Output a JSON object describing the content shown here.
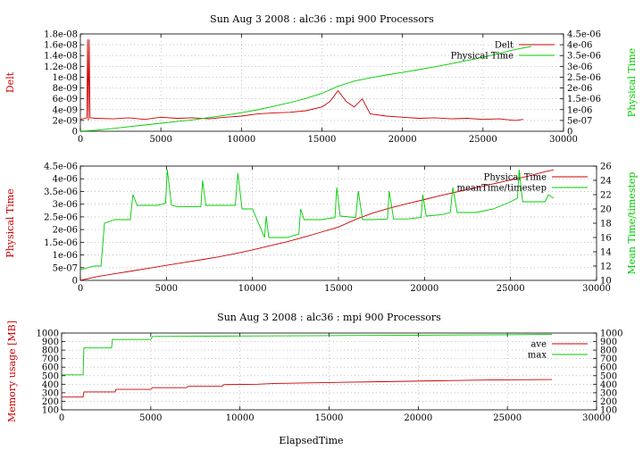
{
  "chart_data": [
    {
      "type": "line",
      "title": "Sun Aug 3 2008 : alc36 : mpi 900 Processors",
      "xlabel": "",
      "ylabel": "Delt",
      "y2label": "Physical Time",
      "xlim": [
        0,
        30000
      ],
      "ylim": [
        0,
        1.8e-08
      ],
      "y2lim": [
        0,
        4.5e-06
      ],
      "grid": true,
      "legend": "top-right",
      "x_ticks": [
        "0",
        "5000",
        "10000",
        "15000",
        "20000",
        "25000",
        "30000"
      ],
      "y_ticks": [
        "0",
        "2e-09",
        "4e-09",
        "6e-09",
        "8e-09",
        "1e-08",
        "1.2e-08",
        "1.4e-08",
        "1.6e-08",
        "1.8e-08"
      ],
      "y2_ticks": [
        "0",
        "5e-07",
        "1e-06",
        "1.5e-06",
        "2e-06",
        "2.5e-06",
        "3e-06",
        "3.5e-06",
        "4e-06",
        "4.5e-06"
      ],
      "series": [
        {
          "name": "Delt",
          "axis": "y",
          "color": "#cc0000",
          "x": [
            0,
            400,
            450,
            500,
            550,
            600,
            1000,
            2000,
            3000,
            4000,
            5000,
            6000,
            7000,
            8000,
            9000,
            10000,
            11000,
            12000,
            13000,
            14000,
            15000,
            15500,
            16000,
            16500,
            17000,
            17500,
            18000,
            19000,
            20000,
            21000,
            22000,
            23000,
            24000,
            25000,
            26000,
            27000,
            27500
          ],
          "y": [
            2.2e-09,
            2.5e-09,
            1.7e-08,
            2e-09,
            1.7e-08,
            2.5e-09,
            2.4e-09,
            2.3e-09,
            2.5e-09,
            2.2e-09,
            2.6e-09,
            2.4e-09,
            2.5e-09,
            2.3e-09,
            2.6e-09,
            2.8e-09,
            3.2e-09,
            3.4e-09,
            3.5e-09,
            3.8e-09,
            4.5e-09,
            5.5e-09,
            7.5e-09,
            5.5e-09,
            4.5e-09,
            6e-09,
            3.2e-09,
            2.8e-09,
            2.6e-09,
            2.4e-09,
            2.5e-09,
            2.3e-09,
            2.4e-09,
            2.2e-09,
            2.3e-09,
            2e-09,
            2.2e-09
          ]
        },
        {
          "name": "Physical Time",
          "axis": "y2",
          "color": "#00cc00",
          "x": [
            0,
            1000,
            2000,
            3000,
            4000,
            5000,
            6000,
            7000,
            8000,
            9000,
            10000,
            11000,
            12000,
            13000,
            14000,
            15000,
            16000,
            17000,
            18000,
            19000,
            20000,
            21000,
            22000,
            23000,
            24000,
            25000,
            26000,
            27000,
            28000
          ],
          "y": [
            0,
            5e-08,
            1.3e-07,
            2.1e-07,
            2.9e-07,
            3.7e-07,
            4.5e-07,
            5.3e-07,
            6.3e-07,
            7.4e-07,
            8.6e-07,
            9.9e-07,
            1.15e-06,
            1.32e-06,
            1.52e-06,
            1.75e-06,
            2.08e-06,
            2.32e-06,
            2.47e-06,
            2.6e-06,
            2.72e-06,
            2.85e-06,
            2.98e-06,
            3.12e-06,
            3.27e-06,
            3.42e-06,
            3.6e-06,
            3.78e-06,
            3.92e-06
          ]
        }
      ]
    },
    {
      "type": "line",
      "title": "",
      "xlabel": "",
      "ylabel": "Physical Time",
      "y2label": "Mean Time/timestep",
      "xlim": [
        0,
        30000
      ],
      "ylim": [
        0,
        4.5e-06
      ],
      "y2lim": [
        10,
        26
      ],
      "grid": true,
      "legend": "top-right",
      "x_ticks": [
        "0",
        "5000",
        "10000",
        "15000",
        "20000",
        "25000",
        "30000"
      ],
      "y_ticks": [
        "0",
        "5e-07",
        "1e-06",
        "1.5e-06",
        "2e-06",
        "2.5e-06",
        "3e-06",
        "3.5e-06",
        "4e-06",
        "4.5e-06"
      ],
      "y2_ticks": [
        "10",
        "12",
        "14",
        "16",
        "18",
        "20",
        "22",
        "24",
        "26"
      ],
      "series": [
        {
          "name": "Physical Time",
          "axis": "y",
          "color": "#cc0000",
          "x": [
            0,
            1000,
            2000,
            3000,
            4000,
            5000,
            6000,
            7000,
            8000,
            9000,
            10000,
            11000,
            12000,
            13000,
            14000,
            15000,
            16000,
            17000,
            18000,
            19000,
            20000,
            21000,
            22000,
            23000,
            24000,
            25000,
            26000,
            27000,
            27500
          ],
          "y": [
            0,
            1.5e-07,
            2.6e-07,
            3.7e-07,
            4.8e-07,
            5.9e-07,
            7e-07,
            8.1e-07,
            9.2e-07,
            1.05e-06,
            1.2e-06,
            1.36e-06,
            1.52e-06,
            1.7e-06,
            1.9e-06,
            2.1e-06,
            2.4e-06,
            2.65e-06,
            2.85e-06,
            3.02e-06,
            3.18e-06,
            3.35e-06,
            3.5e-06,
            3.65e-06,
            3.8e-06,
            3.95e-06,
            4.1e-06,
            4.28e-06,
            4.35e-06
          ]
        },
        {
          "name": "meanTime/timestep",
          "axis": "y2",
          "color": "#00cc00",
          "x": [
            0,
            800,
            1200,
            1400,
            2000,
            2900,
            3050,
            3300,
            4500,
            4950,
            5050,
            5300,
            5700,
            6000,
            7000,
            7100,
            7300,
            8000,
            9000,
            9150,
            9400,
            10000,
            10700,
            10800,
            10950,
            12000,
            12700,
            12800,
            13000,
            14000,
            14800,
            14900,
            15100,
            16000,
            16150,
            16400,
            17000,
            17850,
            17950,
            18200,
            19000,
            19800,
            19900,
            20100,
            21000,
            21500,
            21650,
            21900,
            23000,
            24000,
            25000,
            25400,
            25500,
            25700,
            26500,
            27000,
            27200,
            27500
          ],
          "y": [
            11.5,
            12.0,
            12.0,
            18.0,
            18.5,
            18.5,
            22.0,
            20.5,
            20.5,
            20.8,
            25.5,
            20.5,
            20.3,
            20.3,
            20.3,
            24.0,
            20.5,
            20.5,
            20.5,
            25.0,
            20.0,
            20.0,
            16.0,
            19.0,
            16.0,
            16.0,
            16.5,
            20.0,
            18.5,
            18.5,
            18.8,
            23.0,
            19.0,
            18.8,
            22.5,
            18.5,
            18.5,
            18.6,
            22.5,
            18.6,
            18.6,
            18.8,
            22.0,
            19.0,
            19.2,
            19.5,
            23.0,
            19.5,
            19.5,
            20.0,
            21.0,
            21.5,
            25.5,
            21.0,
            21.0,
            21.0,
            22.0,
            21.5
          ]
        }
      ]
    },
    {
      "type": "line",
      "title": "Sun Aug 3 2008 : alc36 : mpi 900 Processors",
      "xlabel": "ElapsedTime",
      "ylabel": "Memory usage [MB]",
      "y2label": "",
      "xlim": [
        0,
        30000
      ],
      "ylim": [
        100,
        1000
      ],
      "y2lim": [
        100,
        1000
      ],
      "grid": true,
      "legend": "top-right",
      "x_ticks": [
        "0",
        "5000",
        "10000",
        "15000",
        "20000",
        "25000",
        "30000"
      ],
      "y_ticks": [
        "100",
        "200",
        "300",
        "400",
        "500",
        "600",
        "700",
        "800",
        "900",
        "1000"
      ],
      "y2_ticks": [
        "100",
        "200",
        "300",
        "400",
        "500",
        "600",
        "700",
        "800",
        "900",
        "1000"
      ],
      "series": [
        {
          "name": "ave",
          "axis": "y",
          "color": "#cc0000",
          "x": [
            0,
            1200,
            1250,
            3000,
            3050,
            5000,
            5100,
            7000,
            7100,
            9000,
            9100,
            11000,
            12000,
            15000,
            18000,
            21000,
            24000,
            27500
          ],
          "y": [
            250,
            250,
            310,
            310,
            340,
            340,
            360,
            360,
            375,
            375,
            395,
            400,
            410,
            420,
            430,
            440,
            450,
            455
          ]
        },
        {
          "name": "max",
          "axis": "y",
          "color": "#00cc00",
          "x": [
            0,
            1200,
            1250,
            2800,
            2850,
            5000,
            5100,
            10000,
            15000,
            20000,
            25000,
            27500
          ],
          "y": [
            510,
            510,
            825,
            825,
            925,
            925,
            960,
            965,
            970,
            975,
            980,
            985
          ]
        }
      ]
    }
  ]
}
